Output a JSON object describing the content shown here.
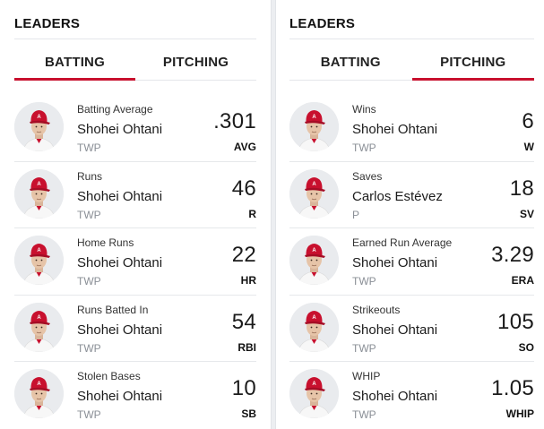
{
  "batting": {
    "title": "LEADERS",
    "tabs": [
      {
        "label": "BATTING",
        "active": true
      },
      {
        "label": "PITCHING",
        "active": false
      }
    ],
    "rows": [
      {
        "stat": "Batting Average",
        "player": "Shohei Ohtani",
        "pos": "TWP",
        "value": ".301",
        "abbr": "AVG",
        "avatar_icon": "player-headshot-icon"
      },
      {
        "stat": "Runs",
        "player": "Shohei Ohtani",
        "pos": "TWP",
        "value": "46",
        "abbr": "R",
        "avatar_icon": "player-headshot-icon"
      },
      {
        "stat": "Home Runs",
        "player": "Shohei Ohtani",
        "pos": "TWP",
        "value": "22",
        "abbr": "HR",
        "avatar_icon": "player-headshot-icon"
      },
      {
        "stat": "Runs Batted In",
        "player": "Shohei Ohtani",
        "pos": "TWP",
        "value": "54",
        "abbr": "RBI",
        "avatar_icon": "player-headshot-icon"
      },
      {
        "stat": "Stolen Bases",
        "player": "Shohei Ohtani",
        "pos": "TWP",
        "value": "10",
        "abbr": "SB",
        "avatar_icon": "player-headshot-icon"
      }
    ]
  },
  "pitching": {
    "title": "LEADERS",
    "tabs": [
      {
        "label": "BATTING",
        "active": false
      },
      {
        "label": "PITCHING",
        "active": true
      }
    ],
    "rows": [
      {
        "stat": "Wins",
        "player": "Shohei Ohtani",
        "pos": "TWP",
        "value": "6",
        "abbr": "W",
        "avatar_icon": "player-headshot-icon"
      },
      {
        "stat": "Saves",
        "player": "Carlos Estévez",
        "pos": "P",
        "value": "18",
        "abbr": "SV",
        "avatar_icon": "player-headshot-icon"
      },
      {
        "stat": "Earned Run Average",
        "player": "Shohei Ohtani",
        "pos": "TWP",
        "value": "3.29",
        "abbr": "ERA",
        "avatar_icon": "player-headshot-icon"
      },
      {
        "stat": "Strikeouts",
        "player": "Shohei Ohtani",
        "pos": "TWP",
        "value": "105",
        "abbr": "SO",
        "avatar_icon": "player-headshot-icon"
      },
      {
        "stat": "WHIP",
        "player": "Shohei Ohtani",
        "pos": "TWP",
        "value": "1.05",
        "abbr": "WHIP",
        "avatar_icon": "player-headshot-icon"
      }
    ]
  },
  "colors": {
    "accent": "#c8102e",
    "cap": "#c8102e",
    "divider": "#e4e6ea",
    "muted": "#8a8f96"
  }
}
